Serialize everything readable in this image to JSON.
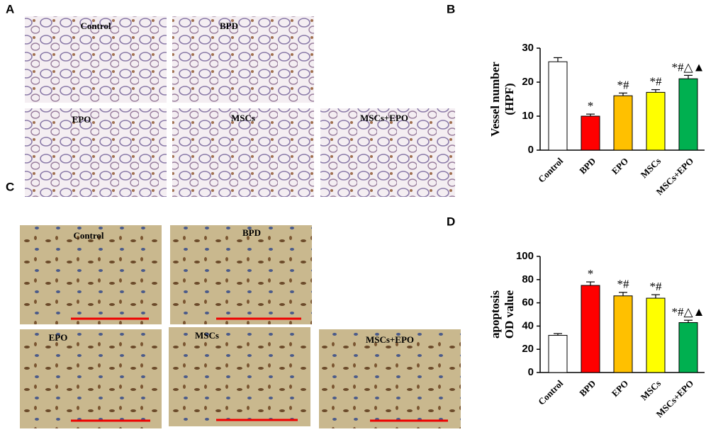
{
  "panels": {
    "labels": [
      "A",
      "B",
      "C",
      "D"
    ],
    "top_images": [
      "Control",
      "BPD",
      "EPO",
      "MSCs",
      "MSCs+EPO"
    ],
    "bottom_images": [
      "Control",
      "BPD",
      "EPO",
      "MSCs",
      "MSCs+EPO"
    ]
  },
  "chart_data": [
    {
      "type": "bar",
      "ylabel": [
        "Vessel  number",
        "(HPF)"
      ],
      "categories": [
        "Control",
        "BPD",
        "EPO",
        "MSCs",
        "MSCs+EPO"
      ],
      "values": [
        26,
        10,
        16,
        17,
        21
      ],
      "errors": [
        1.2,
        0.6,
        0.8,
        0.8,
        1.0
      ],
      "colors": [
        "#ffffff",
        "#ff0000",
        "#ffc000",
        "#ffff00",
        "#00b050"
      ],
      "significance": [
        null,
        "*",
        "*#",
        "*#",
        "*#△▲"
      ],
      "ylim": [
        0,
        30
      ],
      "yticks": [
        0,
        10,
        20,
        30
      ]
    },
    {
      "type": "bar",
      "ylabel": [
        "apoptosis",
        "OD value"
      ],
      "categories": [
        "Control",
        "BPD",
        "EPO",
        "MSCs",
        "MSCs+EPO"
      ],
      "values": [
        32,
        75,
        66,
        64,
        43
      ],
      "errors": [
        1.5,
        3,
        3,
        3,
        2
      ],
      "colors": [
        "#ffffff",
        "#ff0000",
        "#ffc000",
        "#ffff00",
        "#00b050"
      ],
      "significance": [
        null,
        "*",
        "*#",
        "*#",
        "*#△▲"
      ],
      "ylim": [
        0,
        100
      ],
      "yticks": [
        0,
        20,
        40,
        60,
        80,
        100
      ]
    }
  ]
}
